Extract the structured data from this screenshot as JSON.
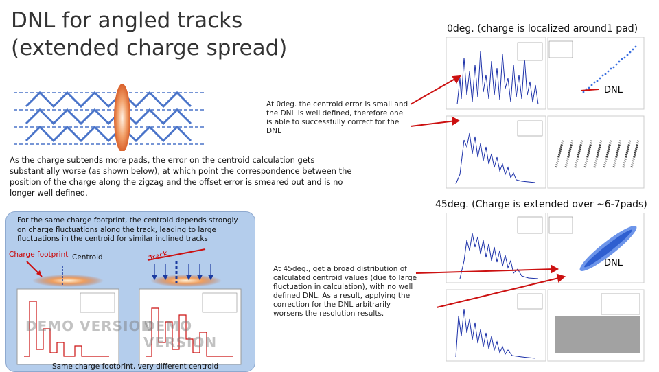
{
  "title": {
    "line1": "DNL for angled tracks",
    "line2": "(extended charge spread)"
  },
  "top_right_caption": "0deg. (charge is localized around1 pad)",
  "mid_right_caption": "45deg. (Charge is extended over ~6-7pads)",
  "note_0deg": "At 0deg. the centroid error is small and the DNL is well defined, therefore one is able to successfully correct for the DNL",
  "main_text": "As the charge subtends more pads, the error on the centroid calculation gets substantially worse (as shown below), at which point the correspondence between the position of the charge along the zigzag and the offset error is smeared out and is no longer well defined.",
  "box": {
    "text": "For the same charge footprint, the centroid depends strongly on charge fluctuations along the track, leading to large fluctuations in the centroid for similar inclined tracks",
    "charge_footprint_label": "Charge footprint",
    "centroid_label": "Centroid",
    "track_label": "Track",
    "demo_watermark": "DEMO VERSION",
    "bottom_caption": "Same charge footprint, very different centroid"
  },
  "note_45deg": "At 45deg., get a broad distribution of calculated centroid values (due to large fluctuation in calculation), with no well defined DNL. As a result, applying the correction for the DNL arbitrarily worsens the resolution results.",
  "dnl_label_top": "DNL",
  "dnl_label_bottom": "DNL",
  "colors": {
    "arrow_red": "#cc1111",
    "zigzag_blue": "#4a74c9",
    "box_blue": "#b4cdec",
    "histogram_blue": "#1a2fa8",
    "scatter_blue": "#3a6fe0",
    "footprint_orange": "#e07a3a"
  }
}
